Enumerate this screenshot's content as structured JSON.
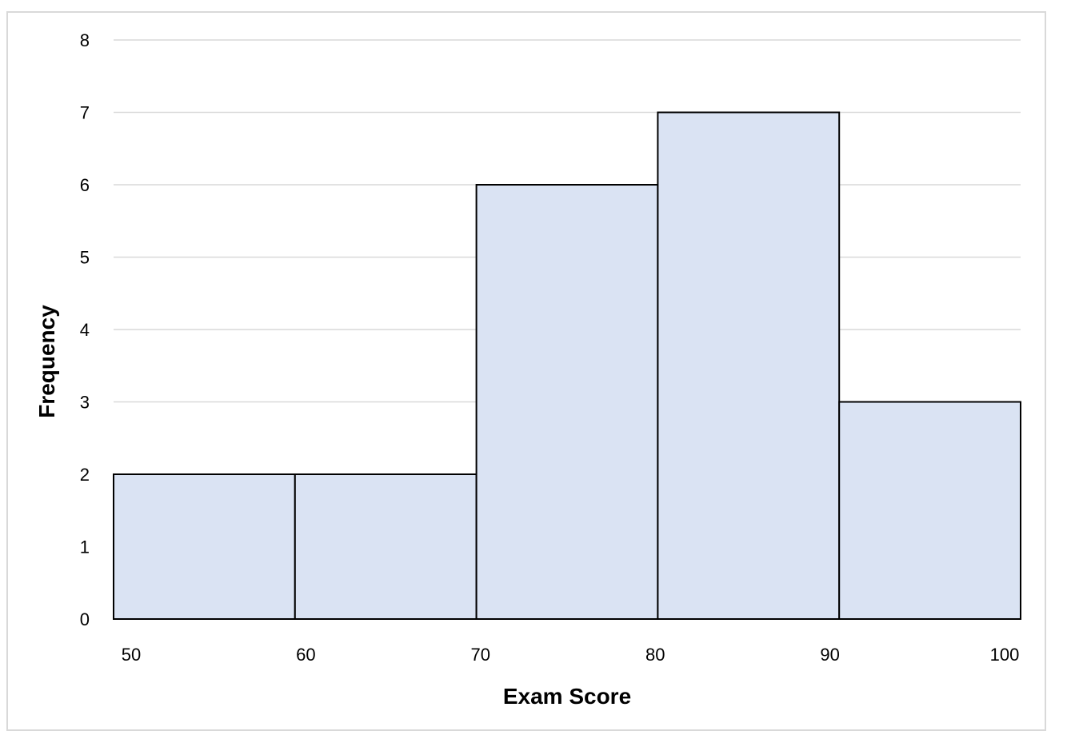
{
  "chart_data": {
    "type": "bar",
    "subtype": "histogram",
    "title": "",
    "xlabel": "Exam Score",
    "ylabel": "Frequency",
    "bins": [
      {
        "from": 50,
        "to": 60,
        "count": 2
      },
      {
        "from": 60,
        "to": 70,
        "count": 2
      },
      {
        "from": 70,
        "to": 80,
        "count": 6
      },
      {
        "from": 80,
        "to": 90,
        "count": 7
      },
      {
        "from": 90,
        "to": 100,
        "count": 3
      }
    ],
    "x_ticks": [
      "50",
      "60",
      "70",
      "80",
      "90",
      "100"
    ],
    "y_ticks": [
      "0",
      "1",
      "2",
      "3",
      "4",
      "5",
      "6",
      "7",
      "8"
    ],
    "xlim": [
      50,
      100
    ],
    "ylim": [
      0,
      8
    ],
    "grid": "horizontal",
    "bar_fill": "#dae3f3",
    "bar_stroke": "#000000",
    "grid_color": "#d9d9d9"
  }
}
